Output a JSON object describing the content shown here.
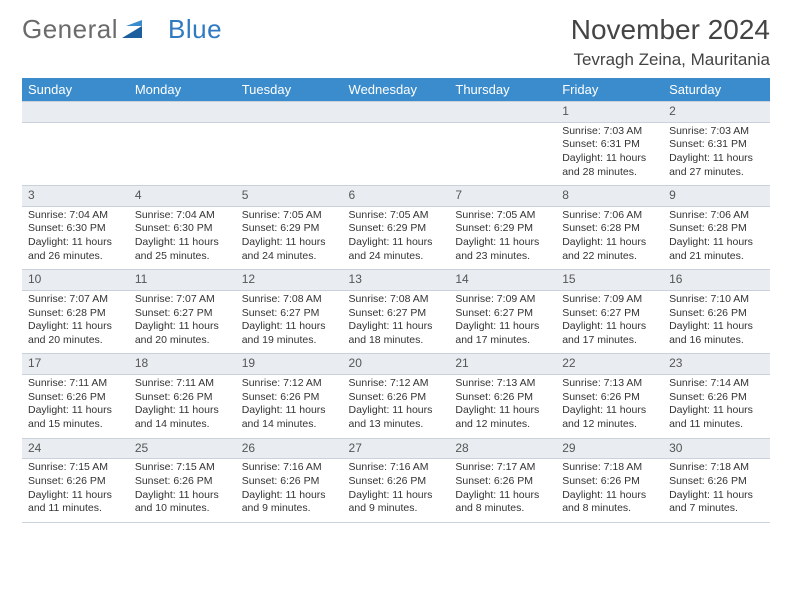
{
  "brand": {
    "word1": "General",
    "word2": "Blue"
  },
  "title": "November 2024",
  "subtitle": "Tevragh Zeina, Mauritania",
  "colors": {
    "header_bg": "#3b8ccc",
    "header_fg": "#ffffff",
    "daynum_bg": "#e9edf1",
    "grid_line": "#c9d2da",
    "logo_gray": "#6b6b6b",
    "logo_blue": "#2f7ac0",
    "text": "#333333",
    "page_bg": "#ffffff"
  },
  "weekdays": [
    "Sunday",
    "Monday",
    "Tuesday",
    "Wednesday",
    "Thursday",
    "Friday",
    "Saturday"
  ],
  "weeks": [
    [
      null,
      null,
      null,
      null,
      null,
      {
        "n": "1",
        "sunrise": "7:03 AM",
        "sunset": "6:31 PM",
        "daylight": "11 hours and 28 minutes."
      },
      {
        "n": "2",
        "sunrise": "7:03 AM",
        "sunset": "6:31 PM",
        "daylight": "11 hours and 27 minutes."
      }
    ],
    [
      {
        "n": "3",
        "sunrise": "7:04 AM",
        "sunset": "6:30 PM",
        "daylight": "11 hours and 26 minutes."
      },
      {
        "n": "4",
        "sunrise": "7:04 AM",
        "sunset": "6:30 PM",
        "daylight": "11 hours and 25 minutes."
      },
      {
        "n": "5",
        "sunrise": "7:05 AM",
        "sunset": "6:29 PM",
        "daylight": "11 hours and 24 minutes."
      },
      {
        "n": "6",
        "sunrise": "7:05 AM",
        "sunset": "6:29 PM",
        "daylight": "11 hours and 24 minutes."
      },
      {
        "n": "7",
        "sunrise": "7:05 AM",
        "sunset": "6:29 PM",
        "daylight": "11 hours and 23 minutes."
      },
      {
        "n": "8",
        "sunrise": "7:06 AM",
        "sunset": "6:28 PM",
        "daylight": "11 hours and 22 minutes."
      },
      {
        "n": "9",
        "sunrise": "7:06 AM",
        "sunset": "6:28 PM",
        "daylight": "11 hours and 21 minutes."
      }
    ],
    [
      {
        "n": "10",
        "sunrise": "7:07 AM",
        "sunset": "6:28 PM",
        "daylight": "11 hours and 20 minutes."
      },
      {
        "n": "11",
        "sunrise": "7:07 AM",
        "sunset": "6:27 PM",
        "daylight": "11 hours and 20 minutes."
      },
      {
        "n": "12",
        "sunrise": "7:08 AM",
        "sunset": "6:27 PM",
        "daylight": "11 hours and 19 minutes."
      },
      {
        "n": "13",
        "sunrise": "7:08 AM",
        "sunset": "6:27 PM",
        "daylight": "11 hours and 18 minutes."
      },
      {
        "n": "14",
        "sunrise": "7:09 AM",
        "sunset": "6:27 PM",
        "daylight": "11 hours and 17 minutes."
      },
      {
        "n": "15",
        "sunrise": "7:09 AM",
        "sunset": "6:27 PM",
        "daylight": "11 hours and 17 minutes."
      },
      {
        "n": "16",
        "sunrise": "7:10 AM",
        "sunset": "6:26 PM",
        "daylight": "11 hours and 16 minutes."
      }
    ],
    [
      {
        "n": "17",
        "sunrise": "7:11 AM",
        "sunset": "6:26 PM",
        "daylight": "11 hours and 15 minutes."
      },
      {
        "n": "18",
        "sunrise": "7:11 AM",
        "sunset": "6:26 PM",
        "daylight": "11 hours and 14 minutes."
      },
      {
        "n": "19",
        "sunrise": "7:12 AM",
        "sunset": "6:26 PM",
        "daylight": "11 hours and 14 minutes."
      },
      {
        "n": "20",
        "sunrise": "7:12 AM",
        "sunset": "6:26 PM",
        "daylight": "11 hours and 13 minutes."
      },
      {
        "n": "21",
        "sunrise": "7:13 AM",
        "sunset": "6:26 PM",
        "daylight": "11 hours and 12 minutes."
      },
      {
        "n": "22",
        "sunrise": "7:13 AM",
        "sunset": "6:26 PM",
        "daylight": "11 hours and 12 minutes."
      },
      {
        "n": "23",
        "sunrise": "7:14 AM",
        "sunset": "6:26 PM",
        "daylight": "11 hours and 11 minutes."
      }
    ],
    [
      {
        "n": "24",
        "sunrise": "7:15 AM",
        "sunset": "6:26 PM",
        "daylight": "11 hours and 11 minutes."
      },
      {
        "n": "25",
        "sunrise": "7:15 AM",
        "sunset": "6:26 PM",
        "daylight": "11 hours and 10 minutes."
      },
      {
        "n": "26",
        "sunrise": "7:16 AM",
        "sunset": "6:26 PM",
        "daylight": "11 hours and 9 minutes."
      },
      {
        "n": "27",
        "sunrise": "7:16 AM",
        "sunset": "6:26 PM",
        "daylight": "11 hours and 9 minutes."
      },
      {
        "n": "28",
        "sunrise": "7:17 AM",
        "sunset": "6:26 PM",
        "daylight": "11 hours and 8 minutes."
      },
      {
        "n": "29",
        "sunrise": "7:18 AM",
        "sunset": "6:26 PM",
        "daylight": "11 hours and 8 minutes."
      },
      {
        "n": "30",
        "sunrise": "7:18 AM",
        "sunset": "6:26 PM",
        "daylight": "11 hours and 7 minutes."
      }
    ]
  ],
  "labels": {
    "sunrise": "Sunrise:",
    "sunset": "Sunset:",
    "daylight": "Daylight:"
  }
}
